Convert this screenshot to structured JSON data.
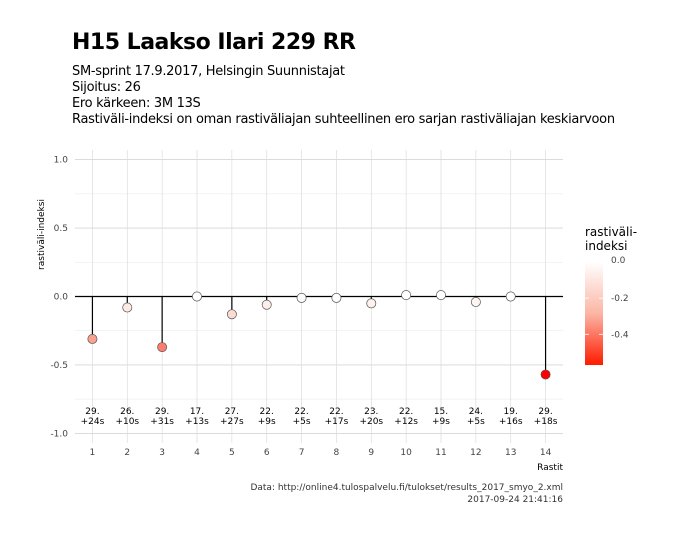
{
  "chart_data": {
    "type": "lollipop",
    "title": "H15 Laakso Ilari 229 RR",
    "subtitle_lines": [
      "SM-sprint 17.9.2017, Helsingin Suunnistajat",
      "Sijoitus: 26",
      "Ero kärkeen: 3M 13S",
      "Rastiväli-indeksi on oman rastiväliajan suhteellinen ero sarjan rastiväliajan keskiarvoon"
    ],
    "xlabel": "Rastit",
    "ylabel": "rastiväli-indeksi",
    "ylim": [
      -1.0,
      1.0
    ],
    "yticks": [
      -1.0,
      -0.5,
      0.0,
      0.5,
      1.0
    ],
    "ytick_labels": [
      "-1.0",
      "-0.5",
      "0.0",
      "0.5",
      "1.0"
    ],
    "x": [
      1,
      2,
      3,
      4,
      5,
      6,
      7,
      8,
      9,
      10,
      11,
      12,
      13,
      14
    ],
    "values": [
      -0.31,
      -0.08,
      -0.37,
      0.0,
      -0.13,
      -0.06,
      -0.01,
      -0.01,
      -0.05,
      0.01,
      0.01,
      -0.04,
      0.0,
      -0.57
    ],
    "rank_labels": [
      "29.",
      "26.",
      "29.",
      "17.",
      "27.",
      "22.",
      "22.",
      "22.",
      "23.",
      "22.",
      "15.",
      "24.",
      "19.",
      "29."
    ],
    "diff_labels": [
      "+24s",
      "+10s",
      "+31s",
      "+13s",
      "+27s",
      "+9s",
      "+5s",
      "+17s",
      "+20s",
      "+12s",
      "+9s",
      "+5s",
      "+16s",
      "+18s"
    ],
    "legend": {
      "title_lines": [
        "rastiväli-",
        "indeksi"
      ],
      "ticks": [
        0.0,
        -0.2,
        -0.4
      ],
      "tick_labels": [
        "0.0",
        "-0.2",
        "-0.4"
      ],
      "range": [
        -0.57,
        0.0
      ],
      "color_low": "#ff0000",
      "color_high": "#ffffff",
      "placement": "right"
    },
    "grid": true
  },
  "caption": {
    "source": "Data: http://online4.tulospalvelu.fi/tulokset/results_2017_smyo_2.xml",
    "timestamp": "2017-09-24 21:41:16"
  }
}
